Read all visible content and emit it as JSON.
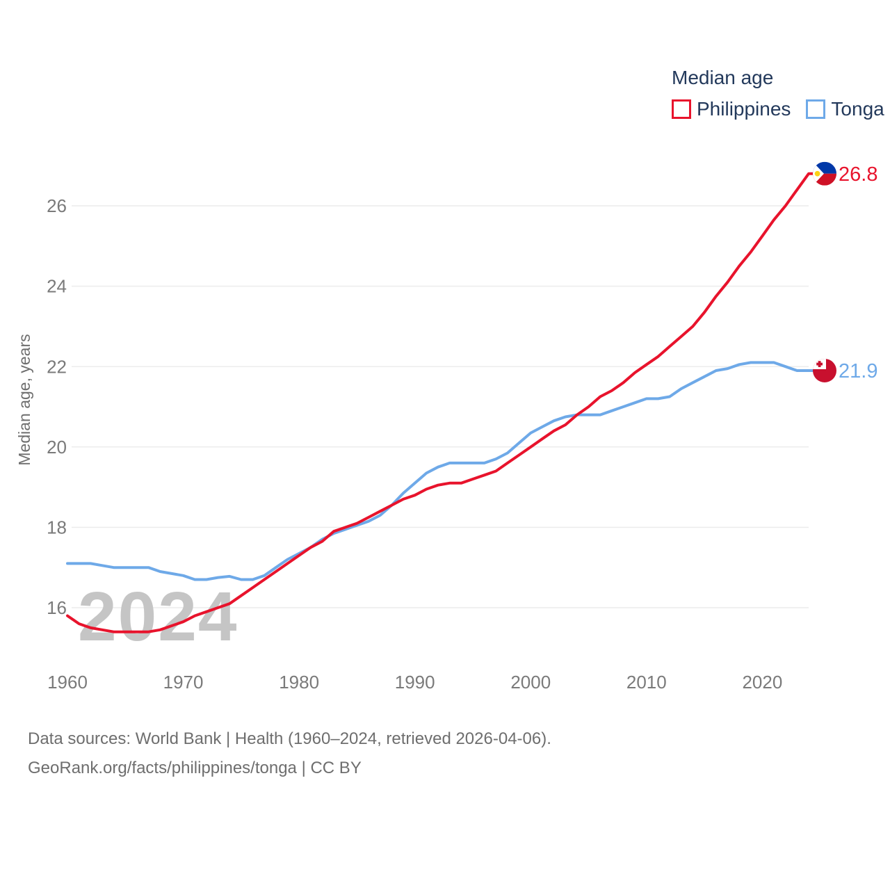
{
  "legend": {
    "title": "Median age",
    "items": [
      {
        "label": "Philippines",
        "color": "#e8132c"
      },
      {
        "label": "Tonga",
        "color": "#6ea9e8"
      }
    ]
  },
  "watermark": "2024",
  "axis": {
    "y_title": "Median age, years",
    "y_ticks": [
      16,
      18,
      20,
      22,
      24,
      26
    ],
    "x_ticks": [
      1960,
      1970,
      1980,
      1990,
      2000,
      2010,
      2020
    ],
    "tick_color": "#7a7a7a",
    "grid_color": "#ececec"
  },
  "chart_data": {
    "type": "line",
    "title": "Median age",
    "ylabel": "Median age, years",
    "xlabel": "",
    "x_start": 1960,
    "x_end": 2024,
    "ylim": [
      15,
      27.2
    ],
    "grid": "horizontal",
    "legend_position": "top-right",
    "series": [
      {
        "name": "Tonga",
        "color": "#6ea9e8",
        "end_label": "21.9",
        "end_value": 21.9,
        "flag": "tonga",
        "values": [
          17.1,
          17.1,
          17.1,
          17.05,
          17.0,
          17.0,
          17.0,
          17.0,
          16.9,
          16.85,
          16.8,
          16.7,
          16.7,
          16.75,
          16.78,
          16.7,
          16.7,
          16.8,
          17.0,
          17.2,
          17.35,
          17.5,
          17.7,
          17.85,
          17.95,
          18.05,
          18.15,
          18.3,
          18.55,
          18.85,
          19.1,
          19.35,
          19.5,
          19.6,
          19.6,
          19.6,
          19.6,
          19.7,
          19.85,
          20.1,
          20.35,
          20.5,
          20.65,
          20.75,
          20.8,
          20.8,
          20.8,
          20.9,
          21.0,
          21.1,
          21.2,
          21.2,
          21.25,
          21.45,
          21.6,
          21.75,
          21.9,
          21.95,
          22.05,
          22.1,
          22.1,
          22.1,
          22.0,
          21.9,
          21.9
        ]
      },
      {
        "name": "Philippines",
        "color": "#e8132c",
        "end_label": "26.8",
        "end_value": 26.8,
        "flag": "philippines",
        "values": [
          15.8,
          15.6,
          15.5,
          15.45,
          15.4,
          15.4,
          15.4,
          15.4,
          15.45,
          15.55,
          15.65,
          15.8,
          15.9,
          16.0,
          16.1,
          16.3,
          16.5,
          16.7,
          16.9,
          17.1,
          17.3,
          17.5,
          17.65,
          17.9,
          18.0,
          18.1,
          18.25,
          18.4,
          18.55,
          18.7,
          18.8,
          18.95,
          19.05,
          19.1,
          19.1,
          19.2,
          19.3,
          19.4,
          19.6,
          19.8,
          20.0,
          20.2,
          20.4,
          20.55,
          20.8,
          21.0,
          21.25,
          21.4,
          21.6,
          21.85,
          22.05,
          22.25,
          22.5,
          22.75,
          23.0,
          23.35,
          23.75,
          24.1,
          24.5,
          24.85,
          25.25,
          25.65,
          26.0,
          26.4,
          26.8
        ]
      }
    ]
  },
  "footer": {
    "line1": "Data sources: World Bank | Health (1960–2024, retrieved 2026-04-06).",
    "line2": "GeoRank.org/facts/philippines/tonga | CC BY"
  }
}
